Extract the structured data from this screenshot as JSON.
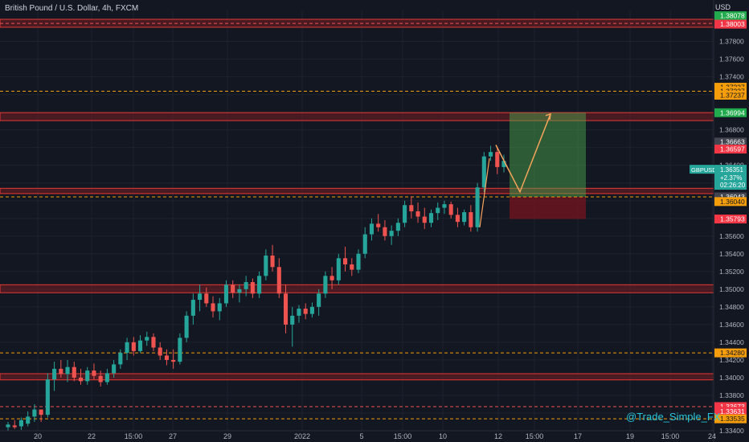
{
  "header": {
    "title": "British Pound / U.S. Dollar, 4h, FXCM",
    "currency": "USD"
  },
  "watermark": "@Trade_Simple_FX",
  "colors": {
    "background": "#131722",
    "bull": "#26a69a",
    "bear": "#ef5350",
    "zone_fill": "rgba(120,30,35,0.55)",
    "zone_border": "#e53935",
    "dash_orange": "#f59d0b",
    "dash_red": "#ef5350",
    "target_fill": "rgba(76,175,80,0.45)",
    "stop_fill": "rgba(120,20,30,0.75)",
    "path": "#f7a35c",
    "label_orange": "#f59d0b",
    "label_red": "#f23645",
    "label_green": "#22ab4c",
    "label_gray": "#434651",
    "label_teal": "#26a69a"
  },
  "chart_data": {
    "type": "candlestick",
    "symbol": "GBPUSD",
    "timeframe": "4h",
    "ylim": [
      1.334,
      1.3815
    ],
    "y_ticks": [
      "1.37800",
      "1.37600",
      "1.37400",
      "1.37200",
      "1.37000",
      "1.36800",
      "1.36600",
      "1.36400",
      "1.36200",
      "1.36000",
      "1.35800",
      "1.35600",
      "1.35400",
      "1.35200",
      "1.35000",
      "1.34800",
      "1.34600",
      "1.34400",
      "1.34200",
      "1.34000",
      "1.33800",
      "1.33600",
      "1.33400"
    ],
    "x_ticks": [
      "20",
      "22",
      "15:00",
      "27",
      "29",
      "2022",
      "5",
      "15:00",
      "10",
      "12",
      "15:00",
      "17",
      "19",
      "15:00",
      "24"
    ],
    "candles": [
      [
        1.3344,
        1.335,
        1.334,
        1.3347
      ],
      [
        1.3346,
        1.3352,
        1.3342,
        1.3344
      ],
      [
        1.3345,
        1.3355,
        1.3341,
        1.3352
      ],
      [
        1.3348,
        1.3362,
        1.3345,
        1.3356
      ],
      [
        1.3356,
        1.337,
        1.335,
        1.3364
      ],
      [
        1.3364,
        1.3362,
        1.335,
        1.3358
      ],
      [
        1.3358,
        1.3405,
        1.3355,
        1.3398
      ],
      [
        1.3398,
        1.3418,
        1.3385,
        1.341
      ],
      [
        1.341,
        1.342,
        1.34,
        1.3404
      ],
      [
        1.3404,
        1.342,
        1.3395,
        1.3412
      ],
      [
        1.3412,
        1.3418,
        1.3396,
        1.34
      ],
      [
        1.34,
        1.341,
        1.3392,
        1.3396
      ],
      [
        1.3396,
        1.3412,
        1.3392,
        1.3408
      ],
      [
        1.3408,
        1.3416,
        1.3398,
        1.3402
      ],
      [
        1.3402,
        1.3408,
        1.339,
        1.3395
      ],
      [
        1.3395,
        1.341,
        1.3392,
        1.3405
      ],
      [
        1.3405,
        1.342,
        1.34,
        1.3415
      ],
      [
        1.3415,
        1.3432,
        1.341,
        1.3428
      ],
      [
        1.3428,
        1.3445,
        1.342,
        1.344
      ],
      [
        1.344,
        1.3446,
        1.3425,
        1.343
      ],
      [
        1.343,
        1.3448,
        1.3428,
        1.3442
      ],
      [
        1.3442,
        1.3452,
        1.3436,
        1.3446
      ],
      [
        1.3446,
        1.345,
        1.343,
        1.3434
      ],
      [
        1.3434,
        1.344,
        1.342,
        1.3425
      ],
      [
        1.3425,
        1.3432,
        1.3414,
        1.342
      ],
      [
        1.342,
        1.3432,
        1.341,
        1.3418
      ],
      [
        1.3418,
        1.345,
        1.3415,
        1.3445
      ],
      [
        1.3445,
        1.3475,
        1.344,
        1.347
      ],
      [
        1.347,
        1.3495,
        1.346,
        1.3488
      ],
      [
        1.3488,
        1.3505,
        1.3475,
        1.3495
      ],
      [
        1.3495,
        1.3502,
        1.348,
        1.3484
      ],
      [
        1.3484,
        1.3492,
        1.3468,
        1.3475
      ],
      [
        1.3475,
        1.349,
        1.3465,
        1.3484
      ],
      [
        1.3484,
        1.351,
        1.348,
        1.3505
      ],
      [
        1.3505,
        1.351,
        1.349,
        1.3496
      ],
      [
        1.3496,
        1.3505,
        1.3485,
        1.35
      ],
      [
        1.35,
        1.3515,
        1.3492,
        1.3508
      ],
      [
        1.3508,
        1.3512,
        1.349,
        1.3495
      ],
      [
        1.3495,
        1.352,
        1.349,
        1.3515
      ],
      [
        1.3515,
        1.3545,
        1.351,
        1.3538
      ],
      [
        1.3538,
        1.355,
        1.352,
        1.3525
      ],
      [
        1.3525,
        1.3535,
        1.349,
        1.3495
      ],
      [
        1.3495,
        1.3505,
        1.345,
        1.346
      ],
      [
        1.346,
        1.348,
        1.3435,
        1.347
      ],
      [
        1.347,
        1.3482,
        1.3462,
        1.3478
      ],
      [
        1.3478,
        1.3484,
        1.3466,
        1.3472
      ],
      [
        1.3472,
        1.3485,
        1.3468,
        1.348
      ],
      [
        1.348,
        1.35,
        1.347,
        1.3495
      ],
      [
        1.3495,
        1.352,
        1.349,
        1.3515
      ],
      [
        1.3515,
        1.3525,
        1.35,
        1.351
      ],
      [
        1.351,
        1.354,
        1.3505,
        1.3535
      ],
      [
        1.3535,
        1.3548,
        1.352,
        1.3528
      ],
      [
        1.3528,
        1.3535,
        1.3515,
        1.3522
      ],
      [
        1.3522,
        1.3545,
        1.3518,
        1.354
      ],
      [
        1.354,
        1.357,
        1.3535,
        1.3562
      ],
      [
        1.3562,
        1.358,
        1.3555,
        1.3574
      ],
      [
        1.3574,
        1.3585,
        1.3565,
        1.357
      ],
      [
        1.357,
        1.3578,
        1.3555,
        1.356
      ],
      [
        1.356,
        1.3572,
        1.355,
        1.3566
      ],
      [
        1.3566,
        1.358,
        1.356,
        1.3575
      ],
      [
        1.3575,
        1.36,
        1.357,
        1.3595
      ],
      [
        1.3595,
        1.3605,
        1.358,
        1.3588
      ],
      [
        1.3588,
        1.3598,
        1.3575,
        1.3582
      ],
      [
        1.3582,
        1.3592,
        1.3568,
        1.3575
      ],
      [
        1.3575,
        1.359,
        1.357,
        1.3586
      ],
      [
        1.3586,
        1.3598,
        1.3578,
        1.3592
      ],
      [
        1.3592,
        1.36,
        1.3585,
        1.3596
      ],
      [
        1.3596,
        1.3599,
        1.358,
        1.3584
      ],
      [
        1.3584,
        1.3592,
        1.357,
        1.3576
      ],
      [
        1.3576,
        1.359,
        1.3572,
        1.3587
      ],
      [
        1.3587,
        1.3595,
        1.3565,
        1.357
      ],
      [
        1.357,
        1.362,
        1.3565,
        1.3615
      ],
      [
        1.3615,
        1.3655,
        1.361,
        1.365
      ],
      [
        1.365,
        1.3662,
        1.3645,
        1.3655
      ],
      [
        1.3655,
        1.366,
        1.363,
        1.3638
      ],
      [
        1.3638,
        1.3652,
        1.3632,
        1.3645
      ]
    ],
    "zones": [
      {
        "name": "zone-1.3800",
        "top": 1.3805,
        "bottom": 1.3796
      },
      {
        "name": "zone-1.3700",
        "top": 1.36995,
        "bottom": 1.36905
      },
      {
        "name": "zone-1.3610",
        "top": 1.3614,
        "bottom": 1.3608
      },
      {
        "name": "zone-1.3500",
        "top": 1.3505,
        "bottom": 1.3496
      },
      {
        "name": "zone-1.3400",
        "top": 1.34045,
        "bottom": 1.33975
      }
    ],
    "dashed_lines": [
      {
        "name": "dash-1.37237",
        "price": 1.37237,
        "color": "orange"
      },
      {
        "name": "dash-1.36043",
        "price": 1.36043,
        "color": "orange"
      },
      {
        "name": "dash-1.34280",
        "price": 1.3428,
        "color": "orange"
      },
      {
        "name": "dash-1.33673",
        "price": 1.33673,
        "color": "red"
      },
      {
        "name": "dash-1.33535",
        "price": 1.33535,
        "color": "orange"
      },
      {
        "name": "dash-1.38003",
        "price": 1.38003,
        "color": "red"
      }
    ],
    "position": {
      "entry": 1.36043,
      "target": 1.36994,
      "stop": 1.35793
    },
    "projection": [
      1.3663,
      1.361,
      1.3698
    ]
  },
  "price_scale_labels": [
    {
      "text": "1.38078",
      "price": 1.3809,
      "color": "green"
    },
    {
      "text": "1.38003",
      "price": 1.37995,
      "color": "red"
    },
    {
      "text": "1.37237",
      "price": 1.37282,
      "color": "orange"
    },
    {
      "text": "1.37237",
      "price": 1.37237,
      "color": "orange"
    },
    {
      "text": "1.37237",
      "price": 1.37192,
      "color": "orange"
    },
    {
      "text": "1.36994",
      "price": 1.36994,
      "color": "green"
    },
    {
      "text": "1.36663",
      "price": 1.36663,
      "color": "gray"
    },
    {
      "text": "1.36597",
      "price": 1.36583,
      "color": "red"
    },
    {
      "text": "1.36043",
      "price": 1.36043,
      "color": "gray"
    },
    {
      "text": "1.36040",
      "price": 1.3599,
      "color": "orange"
    },
    {
      "text": "1.35793",
      "price": 1.35793,
      "color": "red"
    },
    {
      "text": "1.34280",
      "price": 1.3428,
      "color": "orange"
    },
    {
      "text": "1.33673",
      "price": 1.33673,
      "color": "red"
    },
    {
      "text": "1.33631",
      "price": 1.3362,
      "color": "red"
    },
    {
      "text": "1.33535",
      "price": 1.33535,
      "color": "orange"
    }
  ],
  "current_price": {
    "symbol": "GBPUSD",
    "price": "1.36351",
    "change": "+2.37%",
    "countdown": "02:26:20"
  }
}
